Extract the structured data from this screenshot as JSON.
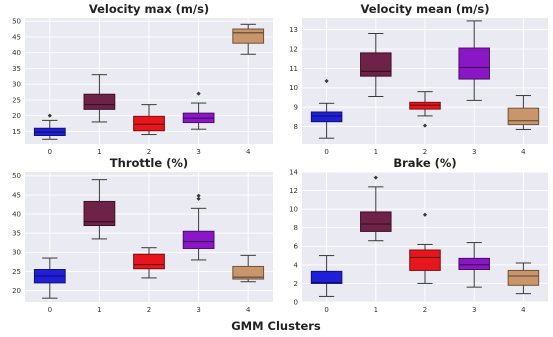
{
  "figure": {
    "xlabel": "GMM Clusters",
    "background_color": "#eaeaf2",
    "grid_color": "#ffffff",
    "grid": true,
    "cluster_colors": [
      "#1f1fd8",
      "#6e2248",
      "#e6161d",
      "#8a17c6",
      "#c8966a"
    ]
  },
  "chart_data": [
    {
      "type": "box",
      "title": "Velocity max (m/s)",
      "categories": [
        "0",
        "1",
        "2",
        "3",
        "4"
      ],
      "ylim": [
        11,
        51
      ],
      "yticks": [
        15,
        20,
        25,
        30,
        35,
        40,
        45,
        50
      ],
      "boxes": [
        {
          "whislo": 12.5,
          "q1": 13.7,
          "med": 14.8,
          "q3": 16.0,
          "whishi": 18.5,
          "fliers": [
            20.0
          ]
        },
        {
          "whislo": 18.0,
          "q1": 22.0,
          "med": 23.5,
          "q3": 26.8,
          "whishi": 33.0,
          "fliers": []
        },
        {
          "whislo": 14.0,
          "q1": 15.2,
          "med": 17.3,
          "q3": 19.8,
          "whishi": 23.5,
          "fliers": []
        },
        {
          "whislo": 15.7,
          "q1": 17.8,
          "med": 19.2,
          "q3": 20.8,
          "whishi": 24.0,
          "fliers": [
            27.0
          ]
        },
        {
          "whislo": 39.5,
          "q1": 43.0,
          "med": 46.3,
          "q3": 47.5,
          "whishi": 49.0,
          "fliers": []
        }
      ]
    },
    {
      "type": "box",
      "title": "Velocity mean (m/s)",
      "categories": [
        "0",
        "1",
        "2",
        "3",
        "4"
      ],
      "ylim": [
        7.1,
        13.6
      ],
      "yticks": [
        8,
        9,
        10,
        11,
        12,
        13
      ],
      "boxes": [
        {
          "whislo": 7.4,
          "q1": 8.25,
          "med": 8.55,
          "q3": 8.75,
          "whishi": 9.2,
          "fliers": [
            10.35
          ]
        },
        {
          "whislo": 9.55,
          "q1": 10.6,
          "med": 10.85,
          "q3": 11.8,
          "whishi": 12.8,
          "fliers": []
        },
        {
          "whislo": 8.55,
          "q1": 8.9,
          "med": 9.1,
          "q3": 9.25,
          "whishi": 9.8,
          "fliers": [
            8.05
          ]
        },
        {
          "whislo": 9.35,
          "q1": 10.45,
          "med": 11.05,
          "q3": 12.05,
          "whishi": 13.45,
          "fliers": []
        },
        {
          "whislo": 7.85,
          "q1": 8.1,
          "med": 8.3,
          "q3": 8.95,
          "whishi": 9.6,
          "fliers": []
        }
      ]
    },
    {
      "type": "box",
      "title": "Throttle (%)",
      "categories": [
        "0",
        "1",
        "2",
        "3",
        "4"
      ],
      "ylim": [
        17,
        51
      ],
      "yticks": [
        20,
        25,
        30,
        35,
        40,
        45,
        50
      ],
      "boxes": [
        {
          "whislo": 18.0,
          "q1": 22.0,
          "med": 23.8,
          "q3": 25.5,
          "whishi": 28.5,
          "fliers": []
        },
        {
          "whislo": 33.5,
          "q1": 37.0,
          "med": 38.0,
          "q3": 43.3,
          "whishi": 49.0,
          "fliers": []
        },
        {
          "whislo": 23.3,
          "q1": 25.7,
          "med": 26.8,
          "q3": 29.5,
          "whishi": 31.2,
          "fliers": []
        },
        {
          "whislo": 28.0,
          "q1": 31.0,
          "med": 32.8,
          "q3": 35.5,
          "whishi": 41.5,
          "fliers": [
            44.0,
            44.8
          ]
        },
        {
          "whislo": 22.3,
          "q1": 23.0,
          "med": 23.5,
          "q3": 26.3,
          "whishi": 29.2,
          "fliers": []
        }
      ]
    },
    {
      "type": "box",
      "title": "Brake (%)",
      "categories": [
        "0",
        "1",
        "2",
        "3",
        "4"
      ],
      "ylim": [
        0,
        14
      ],
      "yticks": [
        0,
        2,
        4,
        6,
        8,
        10,
        12,
        14
      ],
      "boxes": [
        {
          "whislo": 0.6,
          "q1": 2.0,
          "med": 2.1,
          "q3": 3.3,
          "whishi": 5.0,
          "fliers": []
        },
        {
          "whislo": 6.6,
          "q1": 7.6,
          "med": 8.4,
          "q3": 9.7,
          "whishi": 12.4,
          "fliers": [
            13.4
          ]
        },
        {
          "whislo": 2.0,
          "q1": 3.4,
          "med": 4.8,
          "q3": 5.6,
          "whishi": 6.2,
          "fliers": [
            9.4
          ]
        },
        {
          "whislo": 1.6,
          "q1": 3.5,
          "med": 4.0,
          "q3": 4.7,
          "whishi": 6.4,
          "fliers": []
        },
        {
          "whislo": 0.9,
          "q1": 1.8,
          "med": 2.8,
          "q3": 3.4,
          "whishi": 4.2,
          "fliers": []
        }
      ]
    }
  ]
}
